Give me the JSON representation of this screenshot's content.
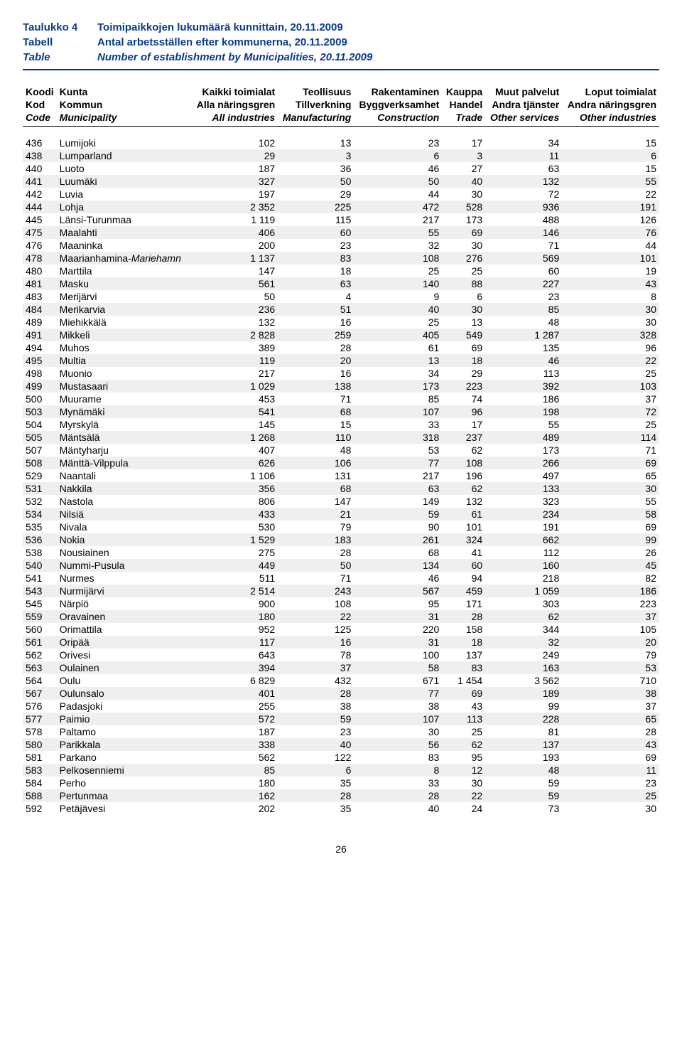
{
  "title": {
    "fi_label": "Taulukko 4",
    "fi_text": "Toimipaikkojen lukumäärä kunnittain, 20.11.2009",
    "sv_label": "Tabell",
    "sv_text": "Antal arbetsställen efter kommunerna, 20.11.2009",
    "en_label": "Table",
    "en_text": "Number of establishment by Municipalities, 20.11.2009"
  },
  "headers": {
    "row1": [
      "Koodi",
      "Kunta",
      "Kaikki toimialat",
      "Teollisuus",
      "Rakentaminen",
      "Kauppa",
      "Muut palvelut",
      "Loput toimialat"
    ],
    "row2": [
      "Kod",
      "Kommun",
      "Alla näringsgren",
      "Tillverkning",
      "Byggverksamhet",
      "Handel",
      "Andra tjänster",
      "Andra näringsgren"
    ],
    "row3": [
      "Code",
      "Municipality",
      "All industries",
      "Manufacturing",
      "Construction",
      "Trade",
      "Other services",
      "Other industries"
    ]
  },
  "rows": [
    [
      "436",
      "Lumijoki",
      "102",
      "13",
      "23",
      "17",
      "34",
      "15"
    ],
    [
      "438",
      "Lumparland",
      "29",
      "3",
      "6",
      "3",
      "11",
      "6"
    ],
    [
      "440",
      "Luoto",
      "187",
      "36",
      "46",
      "27",
      "63",
      "15"
    ],
    [
      "441",
      "Luumäki",
      "327",
      "50",
      "50",
      "40",
      "132",
      "55"
    ],
    [
      "442",
      "Luvia",
      "197",
      "29",
      "44",
      "30",
      "72",
      "22"
    ],
    [
      "444",
      "Lohja",
      "2 352",
      "225",
      "472",
      "528",
      "936",
      "191"
    ],
    [
      "445",
      "Länsi-Turunmaa",
      "1 119",
      "115",
      "217",
      "173",
      "488",
      "126"
    ],
    [
      "475",
      "Maalahti",
      "406",
      "60",
      "55",
      "69",
      "146",
      "76"
    ],
    [
      "476",
      "Maaninka",
      "200",
      "23",
      "32",
      "30",
      "71",
      "44"
    ],
    [
      "478",
      "Maarianhamina-Mariehamn",
      "1 137",
      "83",
      "108",
      "276",
      "569",
      "101"
    ],
    [
      "480",
      "Marttila",
      "147",
      "18",
      "25",
      "25",
      "60",
      "19"
    ],
    [
      "481",
      "Masku",
      "561",
      "63",
      "140",
      "88",
      "227",
      "43"
    ],
    [
      "483",
      "Merijärvi",
      "50",
      "4",
      "9",
      "6",
      "23",
      "8"
    ],
    [
      "484",
      "Merikarvia",
      "236",
      "51",
      "40",
      "30",
      "85",
      "30"
    ],
    [
      "489",
      "Miehikkälä",
      "132",
      "16",
      "25",
      "13",
      "48",
      "30"
    ],
    [
      "491",
      "Mikkeli",
      "2 828",
      "259",
      "405",
      "549",
      "1 287",
      "328"
    ],
    [
      "494",
      "Muhos",
      "389",
      "28",
      "61",
      "69",
      "135",
      "96"
    ],
    [
      "495",
      "Multia",
      "119",
      "20",
      "13",
      "18",
      "46",
      "22"
    ],
    [
      "498",
      "Muonio",
      "217",
      "16",
      "34",
      "29",
      "113",
      "25"
    ],
    [
      "499",
      "Mustasaari",
      "1 029",
      "138",
      "173",
      "223",
      "392",
      "103"
    ],
    [
      "500",
      "Muurame",
      "453",
      "71",
      "85",
      "74",
      "186",
      "37"
    ],
    [
      "503",
      "Mynämäki",
      "541",
      "68",
      "107",
      "96",
      "198",
      "72"
    ],
    [
      "504",
      "Myrskylä",
      "145",
      "15",
      "33",
      "17",
      "55",
      "25"
    ],
    [
      "505",
      "Mäntsälä",
      "1 268",
      "110",
      "318",
      "237",
      "489",
      "114"
    ],
    [
      "507",
      "Mäntyharju",
      "407",
      "48",
      "53",
      "62",
      "173",
      "71"
    ],
    [
      "508",
      "Mänttä-Vilppula",
      "626",
      "106",
      "77",
      "108",
      "266",
      "69"
    ],
    [
      "529",
      "Naantali",
      "1 106",
      "131",
      "217",
      "196",
      "497",
      "65"
    ],
    [
      "531",
      "Nakkila",
      "356",
      "68",
      "63",
      "62",
      "133",
      "30"
    ],
    [
      "532",
      "Nastola",
      "806",
      "147",
      "149",
      "132",
      "323",
      "55"
    ],
    [
      "534",
      "Nilsiä",
      "433",
      "21",
      "59",
      "61",
      "234",
      "58"
    ],
    [
      "535",
      "Nivala",
      "530",
      "79",
      "90",
      "101",
      "191",
      "69"
    ],
    [
      "536",
      "Nokia",
      "1 529",
      "183",
      "261",
      "324",
      "662",
      "99"
    ],
    [
      "538",
      "Nousiainen",
      "275",
      "28",
      "68",
      "41",
      "112",
      "26"
    ],
    [
      "540",
      "Nummi-Pusula",
      "449",
      "50",
      "134",
      "60",
      "160",
      "45"
    ],
    [
      "541",
      "Nurmes",
      "511",
      "71",
      "46",
      "94",
      "218",
      "82"
    ],
    [
      "543",
      "Nurmijärvi",
      "2 514",
      "243",
      "567",
      "459",
      "1 059",
      "186"
    ],
    [
      "545",
      "Närpiö",
      "900",
      "108",
      "95",
      "171",
      "303",
      "223"
    ],
    [
      "559",
      "Oravainen",
      "180",
      "22",
      "31",
      "28",
      "62",
      "37"
    ],
    [
      "560",
      "Orimattila",
      "952",
      "125",
      "220",
      "158",
      "344",
      "105"
    ],
    [
      "561",
      "Oripää",
      "117",
      "16",
      "31",
      "18",
      "32",
      "20"
    ],
    [
      "562",
      "Orivesi",
      "643",
      "78",
      "100",
      "137",
      "249",
      "79"
    ],
    [
      "563",
      "Oulainen",
      "394",
      "37",
      "58",
      "83",
      "163",
      "53"
    ],
    [
      "564",
      "Oulu",
      "6 829",
      "432",
      "671",
      "1 454",
      "3 562",
      "710"
    ],
    [
      "567",
      "Oulunsalo",
      "401",
      "28",
      "77",
      "69",
      "189",
      "38"
    ],
    [
      "576",
      "Padasjoki",
      "255",
      "38",
      "38",
      "43",
      "99",
      "37"
    ],
    [
      "577",
      "Paimio",
      "572",
      "59",
      "107",
      "113",
      "228",
      "65"
    ],
    [
      "578",
      "Paltamo",
      "187",
      "23",
      "30",
      "25",
      "81",
      "28"
    ],
    [
      "580",
      "Parikkala",
      "338",
      "40",
      "56",
      "62",
      "137",
      "43"
    ],
    [
      "581",
      "Parkano",
      "562",
      "122",
      "83",
      "95",
      "193",
      "69"
    ],
    [
      "583",
      "Pelkosenniemi",
      "85",
      "6",
      "8",
      "12",
      "48",
      "11"
    ],
    [
      "584",
      "Perho",
      "180",
      "35",
      "33",
      "30",
      "59",
      "23"
    ],
    [
      "588",
      "Pertunmaa",
      "162",
      "28",
      "28",
      "22",
      "59",
      "25"
    ],
    [
      "592",
      "Petäjävesi",
      "202",
      "35",
      "40",
      "24",
      "73",
      "30"
    ]
  ],
  "italic_names": {
    "Mariehamn": true
  },
  "page_number": "26"
}
